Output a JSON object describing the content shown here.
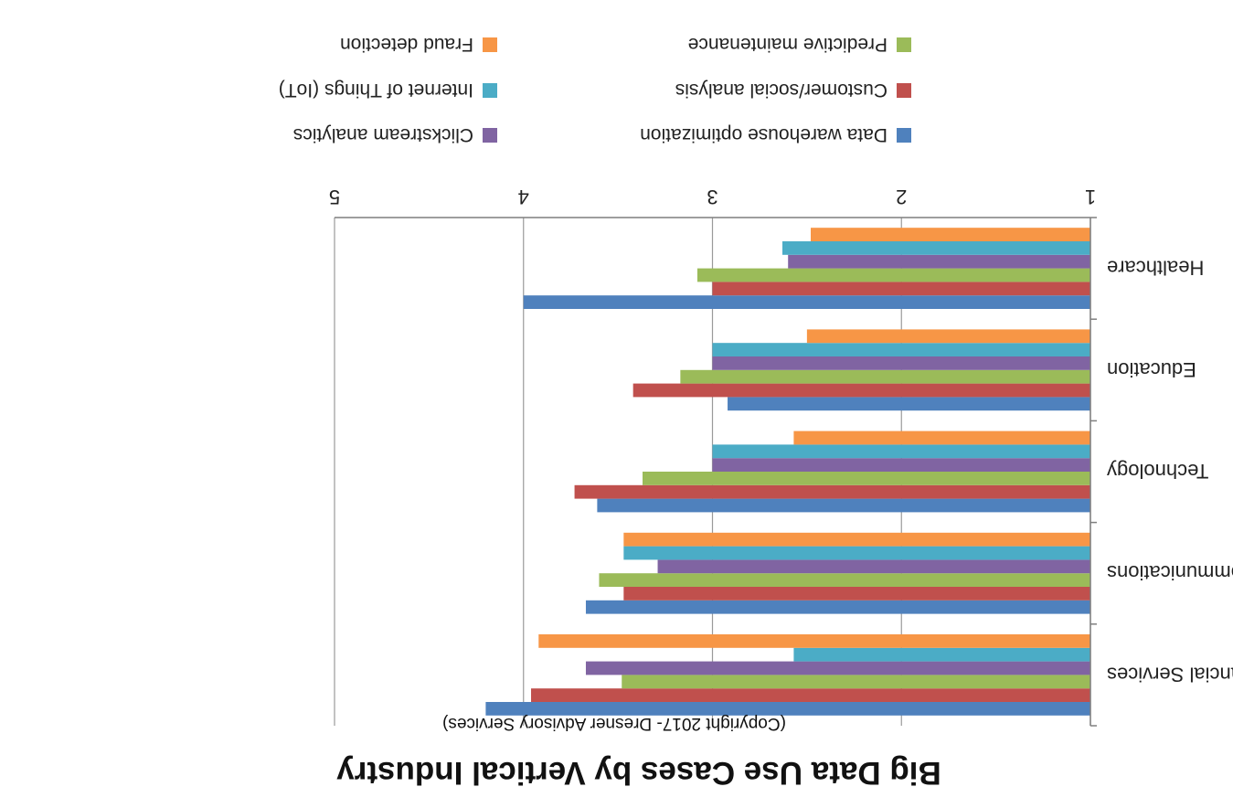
{
  "chart_data": {
    "type": "bar",
    "orientation": "horizontal",
    "rendered_upside_down": true,
    "title": "Big Data Use Cases by Vertical Industry",
    "subtitle": "(Copyright 2017- Dresner Advisory Services)",
    "xlim": [
      1,
      5
    ],
    "xticks": [
      "1",
      "2",
      "3",
      "4",
      "5"
    ],
    "grid": "vertical",
    "legend_position": "top",
    "categories": [
      "Financial Services",
      "Telecommunications",
      "Technology",
      "Education",
      "Healthcare"
    ],
    "series": [
      {
        "name": "Data warehouse optimization",
        "color": "#4f81bd",
        "values": [
          4.2,
          3.67,
          3.61,
          2.92,
          4.0
        ]
      },
      {
        "name": "Customer/social analysis",
        "color": "#c0504d",
        "values": [
          3.96,
          3.47,
          3.73,
          3.42,
          3.0
        ]
      },
      {
        "name": "Predictive maintenance",
        "color": "#9bbb59",
        "values": [
          3.48,
          3.6,
          3.37,
          3.17,
          3.08
        ]
      },
      {
        "name": "Clickstream analytics",
        "color": "#8064a2",
        "values": [
          3.67,
          3.29,
          3.0,
          3.0,
          2.6
        ]
      },
      {
        "name": "Internet of Things (IoT)",
        "color": "#4bacc6",
        "values": [
          2.57,
          3.47,
          3.0,
          3.0,
          2.63
        ]
      },
      {
        "name": "Fraud detection",
        "color": "#f79646",
        "values": [
          3.92,
          3.47,
          2.57,
          2.5,
          2.48
        ]
      }
    ]
  }
}
